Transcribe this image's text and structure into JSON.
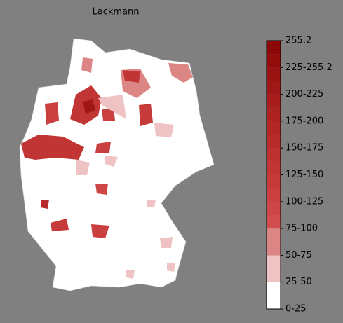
{
  "title": "Lackmann",
  "colorbar": {
    "labels": [
      "255.2",
      "225-255.2",
      "200-225",
      "175-200",
      "150-175",
      "125-150",
      "100-125",
      "75-100",
      "50-75",
      "25-50",
      "0-25"
    ],
    "colors": [
      "#ffffff",
      "#efc3c3",
      "#dc8585",
      "#d24d4d",
      "#ce4646",
      "#ca4040",
      "#c63a3a",
      "#c23535",
      "#bd3030",
      "#b82b2b",
      "#b32626",
      "#ad2121",
      "#a71c1c",
      "#a01717",
      "#9a1212",
      "#940d0d",
      "#8d0909"
    ]
  }
}
